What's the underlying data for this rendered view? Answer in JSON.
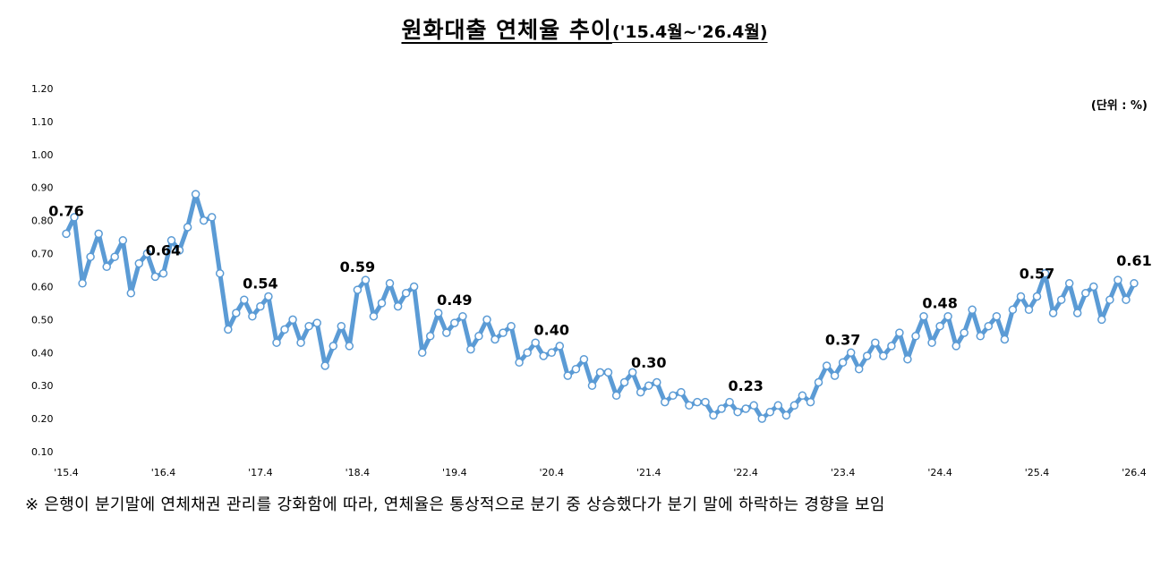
{
  "title": {
    "main": "원화대출 연체율 추이",
    "period": "('15.4월~'26.4월)"
  },
  "unit_label": "(단위 : %)",
  "note": "※ 은행이 분기말에 연체채권 관리를 강화함에 따라, 연체율은 통상적으로 분기 중 상승했다가 분기 말에 하락하는 경향을 보임",
  "colors": {
    "line": "#5b9bd5",
    "marker_fill": "#ffffff",
    "marker_stroke": "#5b9bd5",
    "text": "#000000"
  },
  "chart_data": {
    "type": "line",
    "title": "원화대출 연체율 추이('15.4월~'26.4월)",
    "xlabel": "",
    "ylabel": "",
    "unit": "%",
    "ylim": [
      0.1,
      1.2
    ],
    "yticks": [
      "0.10",
      "0.20",
      "0.30",
      "0.40",
      "0.50",
      "0.60",
      "0.70",
      "0.80",
      "0.90",
      "1.00",
      "1.10",
      "1.20"
    ],
    "x_start": "2015-04",
    "x_end": "2026-04",
    "xtick_labels": [
      "'15.4",
      "'16.4",
      "'17.4",
      "'18.4",
      "'19.4",
      "'20.4",
      "'21.4",
      "'22.4",
      "'23.4",
      "'24.4",
      "'25.4",
      "'26.4"
    ],
    "grid": false,
    "legend": "none",
    "series": [
      {
        "values": [
          0.76,
          0.81,
          0.61,
          0.69,
          0.76,
          0.66,
          0.69,
          0.74,
          0.58,
          0.67,
          0.7,
          0.63,
          0.64,
          0.74,
          0.71,
          0.78,
          0.88,
          0.8,
          0.81,
          0.64,
          0.47,
          0.52,
          0.56,
          0.51,
          0.54,
          0.57,
          0.43,
          0.47,
          0.5,
          0.43,
          0.48,
          0.49,
          0.36,
          0.42,
          0.48,
          0.42,
          0.59,
          0.62,
          0.51,
          0.55,
          0.61,
          0.54,
          0.58,
          0.6,
          0.4,
          0.45,
          0.52,
          0.46,
          0.49,
          0.51,
          0.41,
          0.45,
          0.5,
          0.44,
          0.46,
          0.48,
          0.37,
          0.4,
          0.43,
          0.39,
          0.4,
          0.42,
          0.33,
          0.35,
          0.38,
          0.3,
          0.34,
          0.34,
          0.27,
          0.31,
          0.34,
          0.28,
          0.3,
          0.31,
          0.25,
          0.27,
          0.28,
          0.24,
          0.25,
          0.25,
          0.21,
          0.23,
          0.25,
          0.22,
          0.23,
          0.24,
          0.2,
          0.22,
          0.24,
          0.21,
          0.24,
          0.27,
          0.25,
          0.31,
          0.36,
          0.33,
          0.37,
          0.4,
          0.35,
          0.39,
          0.43,
          0.39,
          0.42,
          0.46,
          0.38,
          0.45,
          0.51,
          0.43,
          0.48,
          0.51,
          0.42,
          0.46,
          0.53,
          0.45,
          0.48,
          0.51,
          0.44,
          0.53,
          0.57,
          0.53,
          0.57,
          0.64,
          0.52,
          0.56,
          0.61,
          0.52,
          0.58,
          0.6,
          0.5,
          0.56,
          0.62,
          0.56,
          0.61
        ]
      }
    ],
    "data_labels": [
      {
        "month": "2015-04",
        "value": 0.76,
        "text": "0.76"
      },
      {
        "month": "2016-04",
        "value": 0.64,
        "text": "0.64"
      },
      {
        "month": "2017-04",
        "value": 0.54,
        "text": "0.54"
      },
      {
        "month": "2018-04",
        "value": 0.59,
        "text": "0.59"
      },
      {
        "month": "2019-04",
        "value": 0.49,
        "text": "0.49"
      },
      {
        "month": "2020-04",
        "value": 0.4,
        "text": "0.40"
      },
      {
        "month": "2021-04",
        "value": 0.3,
        "text": "0.30"
      },
      {
        "month": "2022-04",
        "value": 0.23,
        "text": "0.23"
      },
      {
        "month": "2023-04",
        "value": 0.37,
        "text": "0.37"
      },
      {
        "month": "2024-04",
        "value": 0.48,
        "text": "0.48"
      },
      {
        "month": "2025-04",
        "value": 0.57,
        "text": "0.57"
      },
      {
        "month": "2026-04",
        "value": 0.61,
        "text": "0.61"
      }
    ]
  }
}
